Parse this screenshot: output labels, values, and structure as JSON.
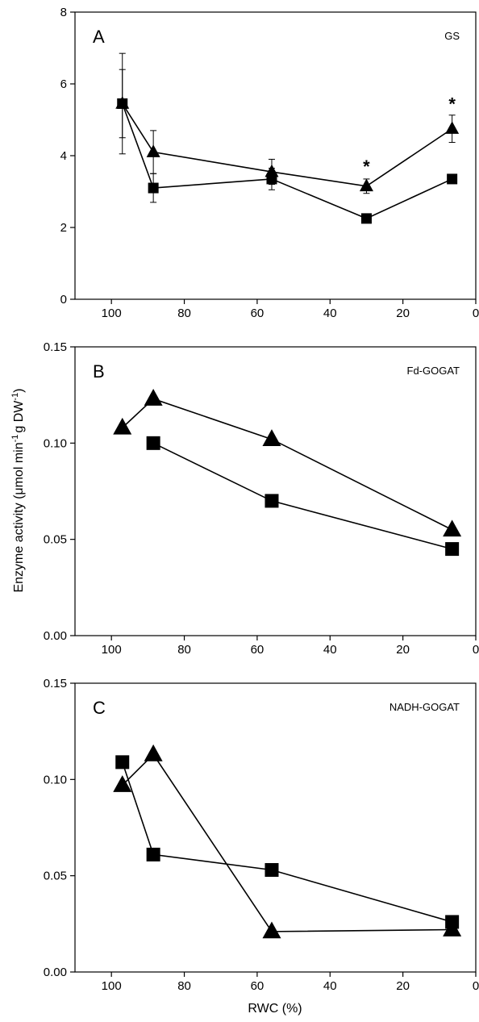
{
  "figure": {
    "ylabel_pre": "Enzyme activity (",
    "ylabel_mu": "μ",
    "ylabel_unit1": "mol min",
    "ylabel_sup1": "-1",
    "ylabel_unit2": "g DW",
    "ylabel_sup2": "-1",
    "ylabel_post": ")",
    "xlabel": "RWC (%)"
  },
  "chart_data": [
    {
      "type": "line",
      "panel_letter": "A",
      "panel_tag": "GS",
      "xlim": [
        110,
        0
      ],
      "ylim": [
        0,
        8
      ],
      "xticks": [
        100,
        80,
        60,
        40,
        20,
        0
      ],
      "yticks": [
        0,
        2,
        4,
        6,
        8
      ],
      "ytick_labels": [
        "0",
        "2",
        "4",
        "6",
        "8"
      ],
      "series": [
        {
          "marker": "triangle",
          "points": [
            [
              97,
              5.45
            ],
            [
              88.5,
              4.1
            ],
            [
              56,
              3.55
            ],
            [
              30,
              3.15
            ],
            [
              6.5,
              4.75
            ]
          ],
          "errors": [
            1.4,
            0.6,
            0.35,
            0.2,
            0.38
          ]
        },
        {
          "marker": "square",
          "points": [
            [
              97,
              5.45
            ],
            [
              88.5,
              3.1
            ],
            [
              56,
              3.35
            ],
            [
              30,
              2.25
            ],
            [
              6.5,
              3.35
            ]
          ],
          "errors": [
            0.95,
            0.4,
            0.3,
            0.12,
            0.1
          ]
        }
      ],
      "annotations": [
        {
          "text": "*",
          "x": 30,
          "y": 3.75
        },
        {
          "text": "*",
          "x": 6.5,
          "y": 5.5
        }
      ]
    },
    {
      "type": "line",
      "panel_letter": "B",
      "panel_tag": "Fd-GOGAT",
      "xlim": [
        110,
        0
      ],
      "ylim": [
        0,
        0.15
      ],
      "xticks": [
        100,
        80,
        60,
        40,
        20,
        0
      ],
      "yticks": [
        0,
        0.05,
        0.1,
        0.15
      ],
      "ytick_labels": [
        "0.00",
        "0.05",
        "0.10",
        "0.15"
      ],
      "series": [
        {
          "marker": "triangle",
          "points": [
            [
              97,
              0.108
            ],
            [
              88.5,
              0.123
            ],
            [
              56,
              0.102
            ],
            [
              6.5,
              0.055
            ]
          ]
        },
        {
          "marker": "square",
          "points": [
            [
              88.5,
              0.1
            ],
            [
              56,
              0.07
            ],
            [
              6.5,
              0.045
            ]
          ]
        }
      ],
      "annotations": []
    },
    {
      "type": "line",
      "panel_letter": "C",
      "panel_tag": "NADH-GOGAT",
      "xlim": [
        110,
        0
      ],
      "ylim": [
        0,
        0.15
      ],
      "xticks": [
        100,
        80,
        60,
        40,
        20,
        0
      ],
      "yticks": [
        0,
        0.05,
        0.1,
        0.15
      ],
      "ytick_labels": [
        "0.00",
        "0.05",
        "0.10",
        "0.15"
      ],
      "series": [
        {
          "marker": "triangle",
          "points": [
            [
              97,
              0.097
            ],
            [
              88.5,
              0.113
            ],
            [
              56,
              0.021
            ],
            [
              6.5,
              0.022
            ]
          ]
        },
        {
          "marker": "square",
          "points": [
            [
              97,
              0.109
            ],
            [
              88.5,
              0.061
            ],
            [
              56,
              0.053
            ],
            [
              6.5,
              0.026
            ]
          ]
        }
      ],
      "annotations": []
    }
  ]
}
